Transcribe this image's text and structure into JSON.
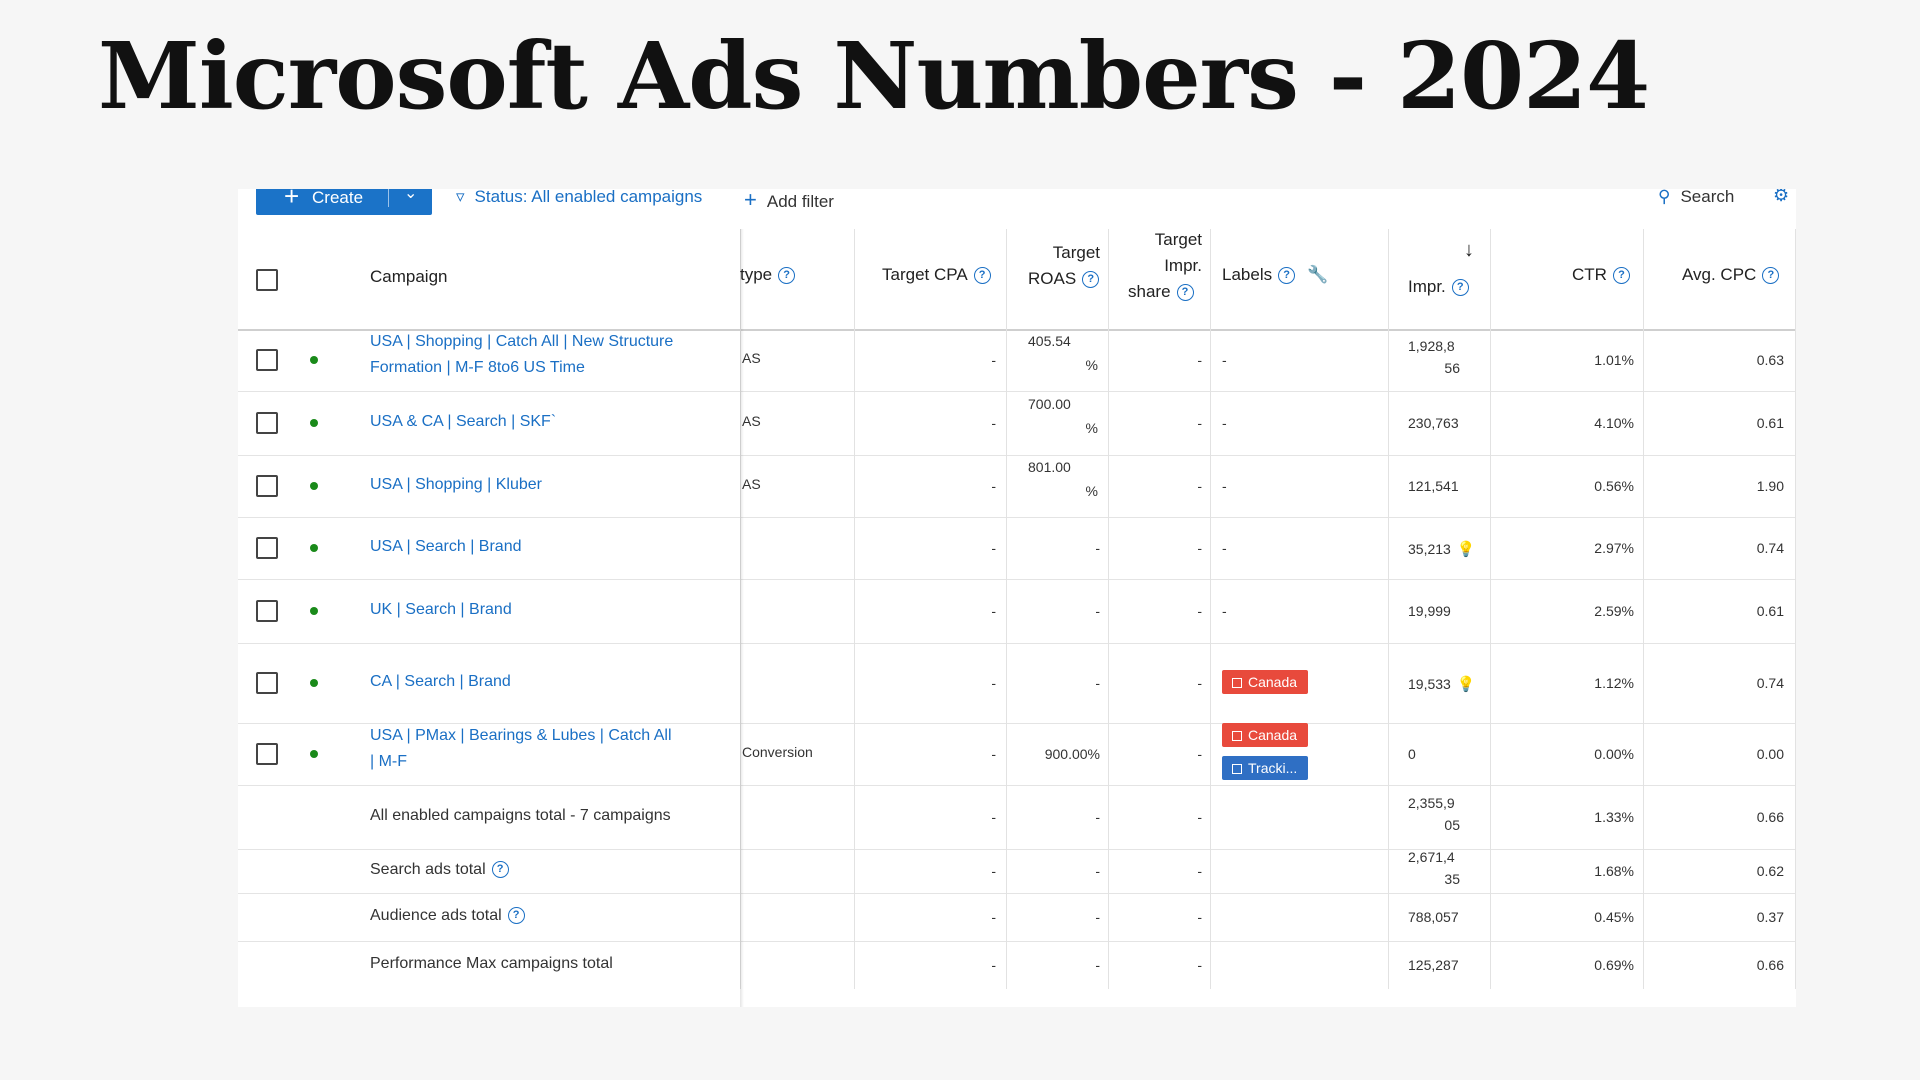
{
  "title": "Microsoft Ads Numbers - 2024",
  "toolbar": {
    "create_label": "Create",
    "filter_label": "Status: All enabled campaigns",
    "add_filter_label": "Add filter",
    "search_label": "Search"
  },
  "columns": {
    "campaign": "Campaign",
    "type": "type",
    "target_cpa": "Target CPA",
    "target_roas_1": "Target",
    "target_roas_2": "ROAS",
    "target_impr_1": "Target",
    "target_impr_2": "Impr.",
    "target_impr_3": "share",
    "labels": "Labels",
    "sort_arrow": "↓",
    "impr": "Impr.",
    "ctr": "CTR",
    "avg_cpc": "Avg. CPC"
  },
  "rows": [
    {
      "name_1": "USA | Shopping | Catch All | New Structure",
      "name_2": "Formation | M-F 8to6 US Time",
      "type": "AS",
      "target_cpa": "-",
      "roas_1": "405.54",
      "roas_2": "%",
      "impr_share": "-",
      "labels": "-",
      "impr_1": "1,928,8",
      "impr_2": "56",
      "ctr": "1.01%",
      "cpc": "0.63"
    },
    {
      "name_1": "USA & CA | Search | SKF`",
      "type": "AS",
      "target_cpa": "-",
      "roas_1": "700.00",
      "roas_2": "%",
      "impr_share": "-",
      "labels": "-",
      "impr_1": "230,763",
      "ctr": "4.10%",
      "cpc": "0.61"
    },
    {
      "name_1": "USA | Shopping | Kluber",
      "type": "AS",
      "target_cpa": "-",
      "roas_1": "801.00",
      "roas_2": "%",
      "impr_share": "-",
      "labels": "-",
      "impr_1": "121,541",
      "ctr": "0.56%",
      "cpc": "1.90"
    },
    {
      "name_1": "USA | Search | Brand",
      "type": "",
      "target_cpa": "-",
      "roas_1": "-",
      "impr_share": "-",
      "labels": "-",
      "impr_1": "35,213",
      "ctr": "2.97%",
      "cpc": "0.74"
    },
    {
      "name_1": "UK | Search | Brand",
      "type": "",
      "target_cpa": "-",
      "roas_1": "-",
      "impr_share": "-",
      "labels": "-",
      "impr_1": "19,999",
      "ctr": "2.59%",
      "cpc": "0.61"
    },
    {
      "name_1": "CA | Search | Brand",
      "type": "",
      "target_cpa": "-",
      "roas_1": "-",
      "impr_share": "-",
      "label_badge_1": "Canada",
      "impr_1": "19,533",
      "ctr": "1.12%",
      "cpc": "0.74"
    },
    {
      "name_1": "USA | PMax | Bearings & Lubes | Catch All",
      "name_2": "| M-F",
      "type": "Conversion",
      "target_cpa": "-",
      "roas_1": "900.00%",
      "impr_share": "-",
      "label_badge_1": "Canada",
      "label_badge_2": "Tracki...",
      "impr_1": "0",
      "ctr": "0.00%",
      "cpc": "0.00"
    }
  ],
  "totals": [
    {
      "name": "All enabled campaigns total - 7 campaigns",
      "target_cpa": "-",
      "roas": "-",
      "impr_share": "-",
      "impr_1": "2,355,9",
      "impr_2": "05",
      "ctr": "1.33%",
      "cpc": "0.66"
    },
    {
      "name": "Search ads total",
      "target_cpa": "-",
      "roas": "-",
      "impr_share": "-",
      "impr_1": "2,671,4",
      "impr_2": "35",
      "ctr": "1.68%",
      "cpc": "0.62"
    },
    {
      "name": "Audience ads total",
      "target_cpa": "-",
      "roas": "-",
      "impr_share": "-",
      "impr_1": "788,057",
      "ctr": "0.45%",
      "cpc": "0.37"
    },
    {
      "name": "Performance Max campaigns total",
      "target_cpa": "-",
      "roas": "-",
      "impr_share": "-",
      "impr_1": "125,287",
      "ctr": "0.69%",
      "cpc": "0.66"
    }
  ],
  "colors": {
    "accent": "#1b73c8",
    "link": "#1a6fc4",
    "badge_red": "#e84a3c",
    "badge_blue": "#2f6fc4",
    "status_green": "#1a8a1a"
  }
}
